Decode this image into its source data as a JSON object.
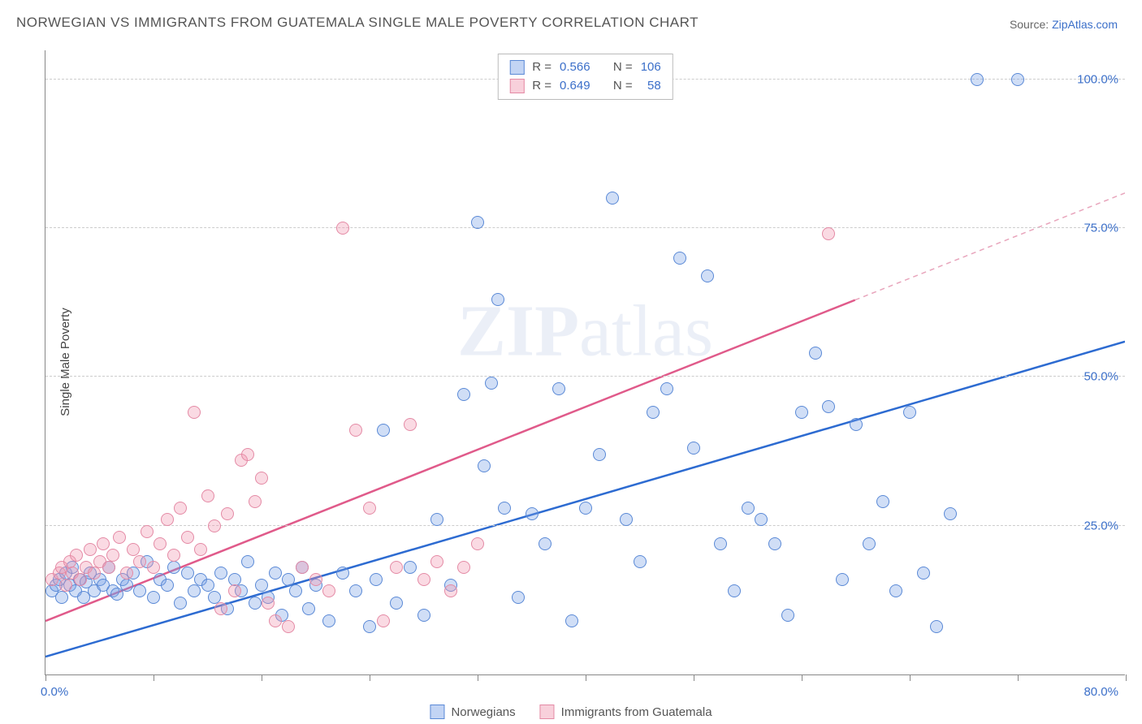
{
  "title": "NORWEGIAN VS IMMIGRANTS FROM GUATEMALA SINGLE MALE POVERTY CORRELATION CHART",
  "source_label": "Source: ",
  "source_name": "ZipAtlas.com",
  "ylabel": "Single Male Poverty",
  "watermark": "ZIPatlas",
  "chart": {
    "type": "scatter",
    "xlim": [
      0,
      80
    ],
    "ylim": [
      0,
      105
    ],
    "x_axis_labels": {
      "left": "0.0%",
      "right": "80.0%"
    },
    "y_gridlines": [
      25,
      50,
      75,
      100
    ],
    "y_tick_labels": [
      "25.0%",
      "50.0%",
      "75.0%",
      "100.0%"
    ],
    "x_ticks": [
      0,
      8,
      16,
      24,
      32,
      40,
      48,
      56,
      64,
      72,
      80
    ],
    "background_color": "#ffffff",
    "grid_color": "#cccccc",
    "axis_color": "#888888",
    "tick_label_color": "#3b6fc9",
    "marker_radius": 8,
    "marker_border_width": 1.2,
    "series": [
      {
        "name": "Norwegians",
        "fill": "rgba(120,160,230,0.35)",
        "stroke": "#5a89d6",
        "r_value": "0.566",
        "n_value": "106",
        "trend": {
          "x1": 0,
          "y1": 3,
          "x2": 80,
          "y2": 56,
          "color": "#2d6bd1",
          "width": 2.5,
          "dash": "none"
        },
        "points": [
          [
            0.5,
            14
          ],
          [
            0.8,
            15
          ],
          [
            1,
            16
          ],
          [
            1.2,
            13
          ],
          [
            1.5,
            17
          ],
          [
            1.8,
            15
          ],
          [
            2,
            18
          ],
          [
            2.2,
            14
          ],
          [
            2.5,
            16
          ],
          [
            2.8,
            13
          ],
          [
            3,
            15.5
          ],
          [
            3.3,
            17
          ],
          [
            3.6,
            14
          ],
          [
            4,
            16
          ],
          [
            4.3,
            15
          ],
          [
            4.7,
            18
          ],
          [
            5,
            14
          ],
          [
            5.3,
            13.5
          ],
          [
            5.7,
            16
          ],
          [
            6,
            15
          ],
          [
            6.5,
            17
          ],
          [
            7,
            14
          ],
          [
            7.5,
            19
          ],
          [
            8,
            13
          ],
          [
            8.5,
            16
          ],
          [
            9,
            15
          ],
          [
            9.5,
            18
          ],
          [
            10,
            12
          ],
          [
            10.5,
            17
          ],
          [
            11,
            14
          ],
          [
            11.5,
            16
          ],
          [
            12,
            15
          ],
          [
            12.5,
            13
          ],
          [
            13,
            17
          ],
          [
            13.5,
            11
          ],
          [
            14,
            16
          ],
          [
            14.5,
            14
          ],
          [
            15,
            19
          ],
          [
            15.5,
            12
          ],
          [
            16,
            15
          ],
          [
            16.5,
            13
          ],
          [
            17,
            17
          ],
          [
            17.5,
            10
          ],
          [
            18,
            16
          ],
          [
            18.5,
            14
          ],
          [
            19,
            18
          ],
          [
            19.5,
            11
          ],
          [
            20,
            15
          ],
          [
            21,
            9
          ],
          [
            22,
            17
          ],
          [
            23,
            14
          ],
          [
            24,
            8
          ],
          [
            24.5,
            16
          ],
          [
            25,
            41
          ],
          [
            26,
            12
          ],
          [
            27,
            18
          ],
          [
            28,
            10
          ],
          [
            29,
            26
          ],
          [
            30,
            15
          ],
          [
            31,
            47
          ],
          [
            32,
            76
          ],
          [
            32.5,
            35
          ],
          [
            33,
            49
          ],
          [
            33.5,
            63
          ],
          [
            34,
            28
          ],
          [
            35,
            13
          ],
          [
            36,
            27
          ],
          [
            37,
            22
          ],
          [
            38,
            48
          ],
          [
            39,
            9
          ],
          [
            40,
            28
          ],
          [
            41,
            37
          ],
          [
            42,
            80
          ],
          [
            43,
            26
          ],
          [
            44,
            19
          ],
          [
            45,
            44
          ],
          [
            46,
            48
          ],
          [
            47,
            70
          ],
          [
            48,
            38
          ],
          [
            49,
            67
          ],
          [
            50,
            22
          ],
          [
            51,
            14
          ],
          [
            52,
            28
          ],
          [
            53,
            26
          ],
          [
            54,
            22
          ],
          [
            55,
            10
          ],
          [
            56,
            44
          ],
          [
            57,
            54
          ],
          [
            58,
            45
          ],
          [
            59,
            16
          ],
          [
            60,
            42
          ],
          [
            61,
            22
          ],
          [
            62,
            29
          ],
          [
            63,
            14
          ],
          [
            64,
            44
          ],
          [
            65,
            17
          ],
          [
            66,
            8
          ],
          [
            67,
            27
          ],
          [
            69,
            100
          ],
          [
            72,
            100
          ]
        ]
      },
      {
        "name": "Immigrants from Guatemala",
        "fill": "rgba(240,150,175,0.35)",
        "stroke": "#e48aa5",
        "r_value": "0.649",
        "n_value": "58",
        "trend_solid": {
          "x1": 0,
          "y1": 9,
          "x2": 60,
          "y2": 63,
          "color": "#e05a8a",
          "width": 2.5
        },
        "trend_dash": {
          "x1": 60,
          "y1": 63,
          "x2": 80,
          "y2": 81,
          "color": "#e8a5bc",
          "width": 1.5
        },
        "points": [
          [
            0.5,
            16
          ],
          [
            1,
            17
          ],
          [
            1.2,
            18
          ],
          [
            1.5,
            15
          ],
          [
            1.8,
            19
          ],
          [
            2,
            17
          ],
          [
            2.3,
            20
          ],
          [
            2.6,
            16
          ],
          [
            3,
            18
          ],
          [
            3.3,
            21
          ],
          [
            3.6,
            17
          ],
          [
            4,
            19
          ],
          [
            4.3,
            22
          ],
          [
            4.7,
            18
          ],
          [
            5,
            20
          ],
          [
            5.5,
            23
          ],
          [
            6,
            17
          ],
          [
            6.5,
            21
          ],
          [
            7,
            19
          ],
          [
            7.5,
            24
          ],
          [
            8,
            18
          ],
          [
            8.5,
            22
          ],
          [
            9,
            26
          ],
          [
            9.5,
            20
          ],
          [
            10,
            28
          ],
          [
            10.5,
            23
          ],
          [
            11,
            44
          ],
          [
            11.5,
            21
          ],
          [
            12,
            30
          ],
          [
            12.5,
            25
          ],
          [
            13,
            11
          ],
          [
            13.5,
            27
          ],
          [
            14,
            14
          ],
          [
            14.5,
            36
          ],
          [
            15,
            37
          ],
          [
            15.5,
            29
          ],
          [
            16,
            33
          ],
          [
            16.5,
            12
          ],
          [
            17,
            9
          ],
          [
            18,
            8
          ],
          [
            19,
            18
          ],
          [
            20,
            16
          ],
          [
            21,
            14
          ],
          [
            22,
            75
          ],
          [
            23,
            41
          ],
          [
            24,
            28
          ],
          [
            25,
            9
          ],
          [
            26,
            18
          ],
          [
            27,
            42
          ],
          [
            28,
            16
          ],
          [
            29,
            19
          ],
          [
            30,
            14
          ],
          [
            31,
            18
          ],
          [
            32,
            22
          ],
          [
            58,
            74
          ]
        ]
      }
    ]
  },
  "legend_top_labels": {
    "R": "R =",
    "N": "N ="
  },
  "legend_bottom": [
    {
      "label": "Norwegians",
      "fill": "rgba(120,160,230,0.45)",
      "stroke": "#5a89d6"
    },
    {
      "label": "Immigrants from Guatemala",
      "fill": "rgba(240,150,175,0.45)",
      "stroke": "#e48aa5"
    }
  ]
}
